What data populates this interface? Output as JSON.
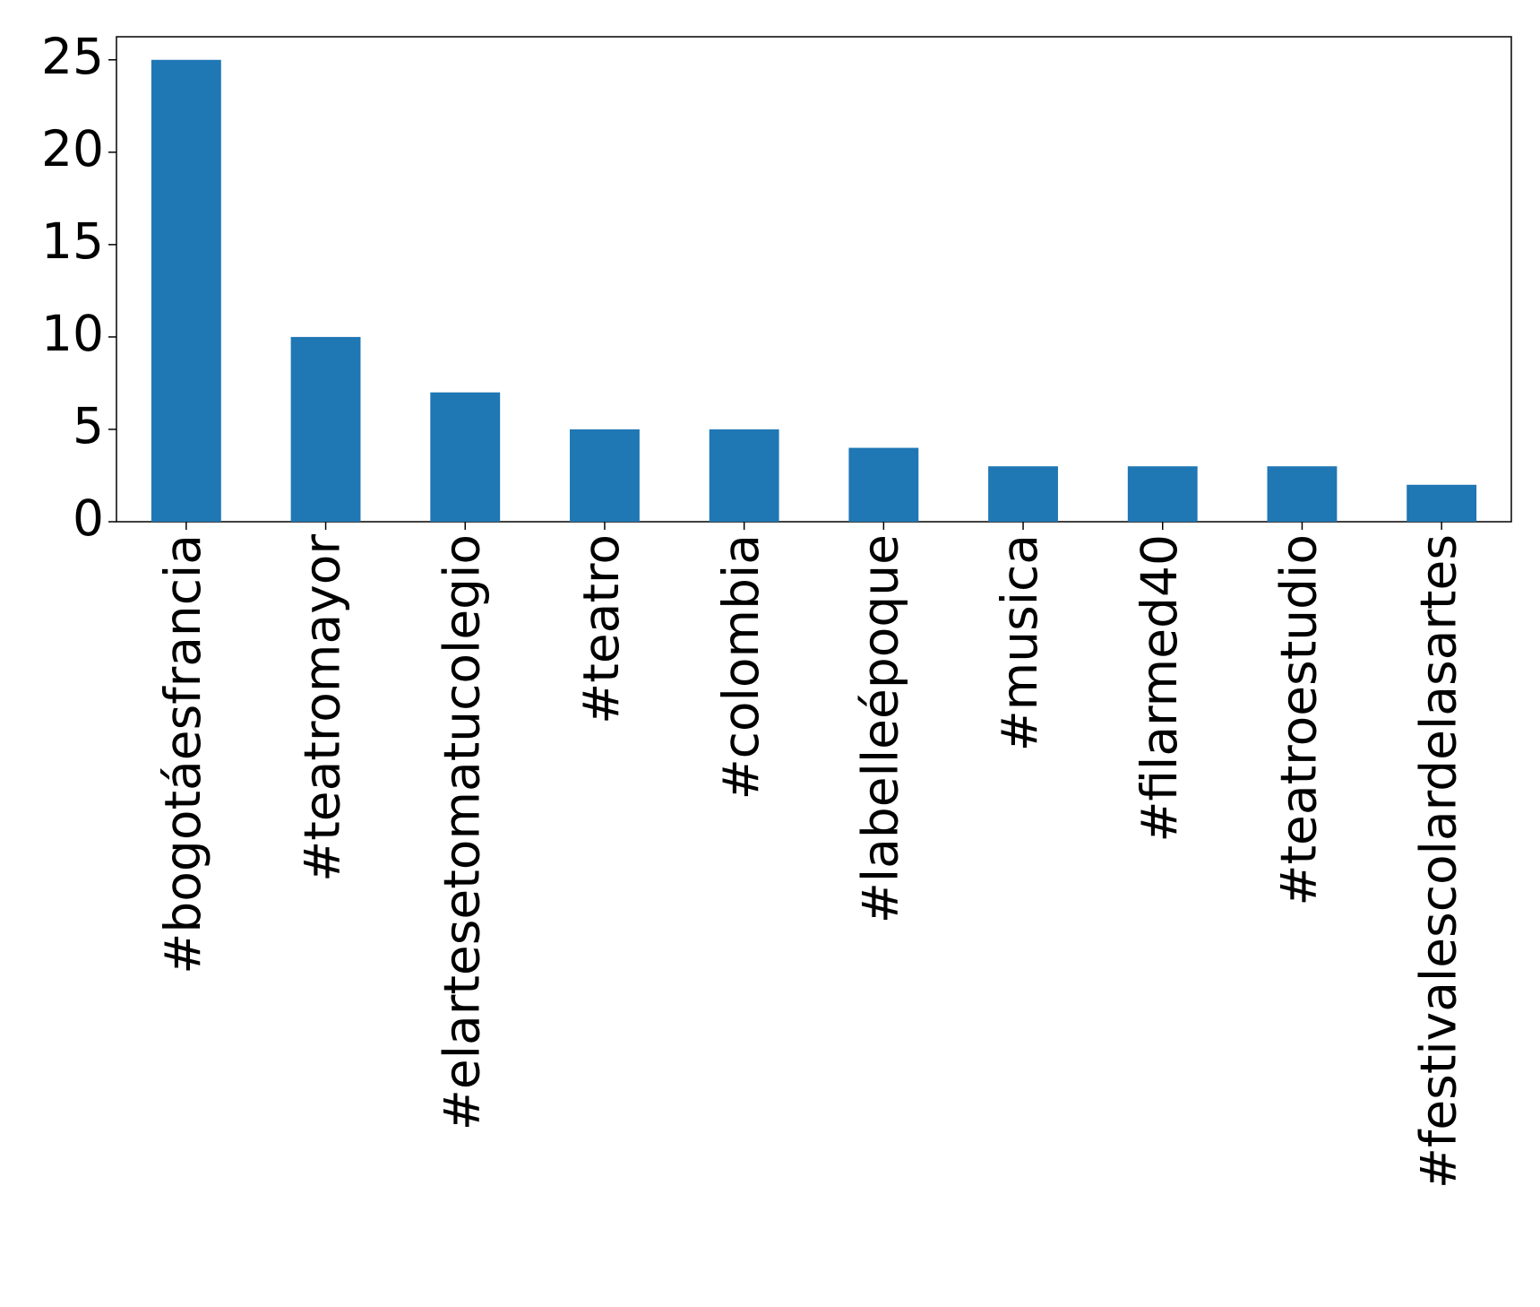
{
  "chart_data": {
    "type": "bar",
    "categories": [
      "#bogotáesfrancia",
      "#teatromayor",
      "#elartesetomatucolegio",
      "#teatro",
      "#colombia",
      "#labelleépoque",
      "#musica",
      "#filarmed40",
      "#teatroestudio",
      "#festivalescolardelasartes"
    ],
    "values": [
      25,
      10,
      7,
      5,
      5,
      4,
      3,
      3,
      3,
      2
    ],
    "color": "#1f77b4",
    "ylim": [
      0,
      26.25
    ],
    "yticks": [
      0,
      5,
      10,
      15,
      20,
      25
    ],
    "grid": false
  }
}
